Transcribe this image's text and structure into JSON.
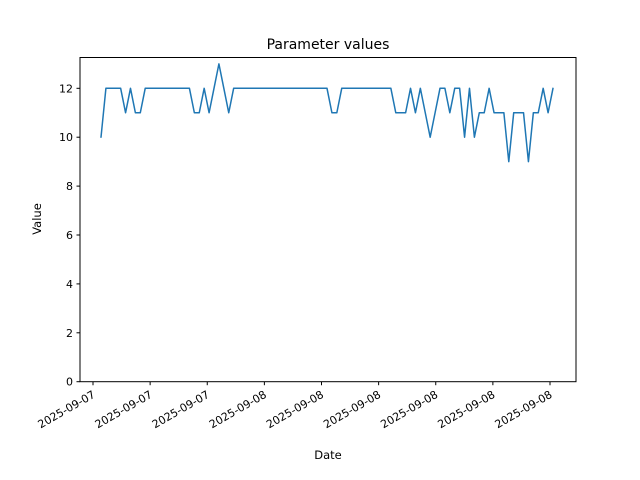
{
  "chart_data": {
    "type": "line",
    "title": "Parameter values",
    "xlabel": "Date",
    "ylabel": "Value",
    "legend": "none",
    "grid": false,
    "marker": "none",
    "line_color": "#1f77b4",
    "axis_color": "#000000",
    "background_color": "#ffffff",
    "ylim": [
      0,
      13.26
    ],
    "yticks": [
      0,
      2,
      4,
      6,
      8,
      10,
      12
    ],
    "xtick_labels": [
      "2025-09-07",
      "2025-09-07",
      "2025-09-07",
      "2025-09-08",
      "2025-09-08",
      "2025-09-08",
      "2025-09-08",
      "2025-09-08",
      "2025-09-08"
    ],
    "xtick_rotation_degrees": 30,
    "series": [
      {
        "name": "parameter-values",
        "values": [
          10,
          12,
          12,
          12,
          12,
          11,
          12,
          11,
          11,
          12,
          12,
          12,
          12,
          12,
          12,
          12,
          12,
          12,
          12,
          11,
          11,
          12,
          11,
          12,
          13,
          12,
          11,
          12,
          12,
          12,
          12,
          12,
          12,
          12,
          12,
          12,
          12,
          12,
          12,
          12,
          12,
          12,
          12,
          12,
          12,
          12,
          12,
          11,
          11,
          12,
          12,
          12,
          12,
          12,
          12,
          12,
          12,
          12,
          12,
          12,
          11,
          11,
          11,
          12,
          11,
          12,
          11,
          10,
          11,
          12,
          12,
          11,
          12,
          12,
          10,
          12,
          10,
          11,
          11,
          12,
          11,
          11,
          11,
          9,
          11,
          11,
          11,
          9,
          11,
          11,
          12,
          11,
          12
        ]
      }
    ]
  }
}
